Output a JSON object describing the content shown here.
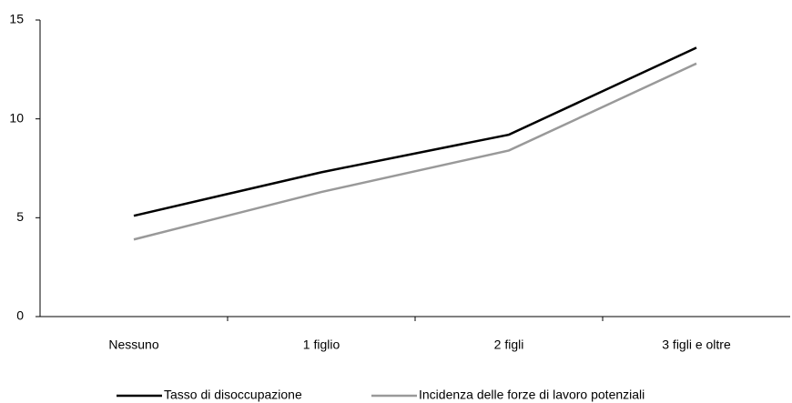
{
  "chart_data": {
    "type": "line",
    "categories": [
      "Nessuno",
      "1 figlio",
      "2 figli",
      "3 figli e oltre"
    ],
    "series": [
      {
        "name": "Tasso di disoccupazione",
        "color": "#000000",
        "values": [
          5.1,
          7.3,
          9.2,
          13.6
        ]
      },
      {
        "name": "Incidenza delle forze di lavoro potenziali",
        "color": "#999999",
        "values": [
          3.9,
          6.3,
          8.4,
          12.8
        ]
      }
    ],
    "ylim": [
      0,
      15
    ],
    "yticks": [
      0,
      5,
      10,
      15
    ],
    "grid": false,
    "legend": "bottom"
  }
}
